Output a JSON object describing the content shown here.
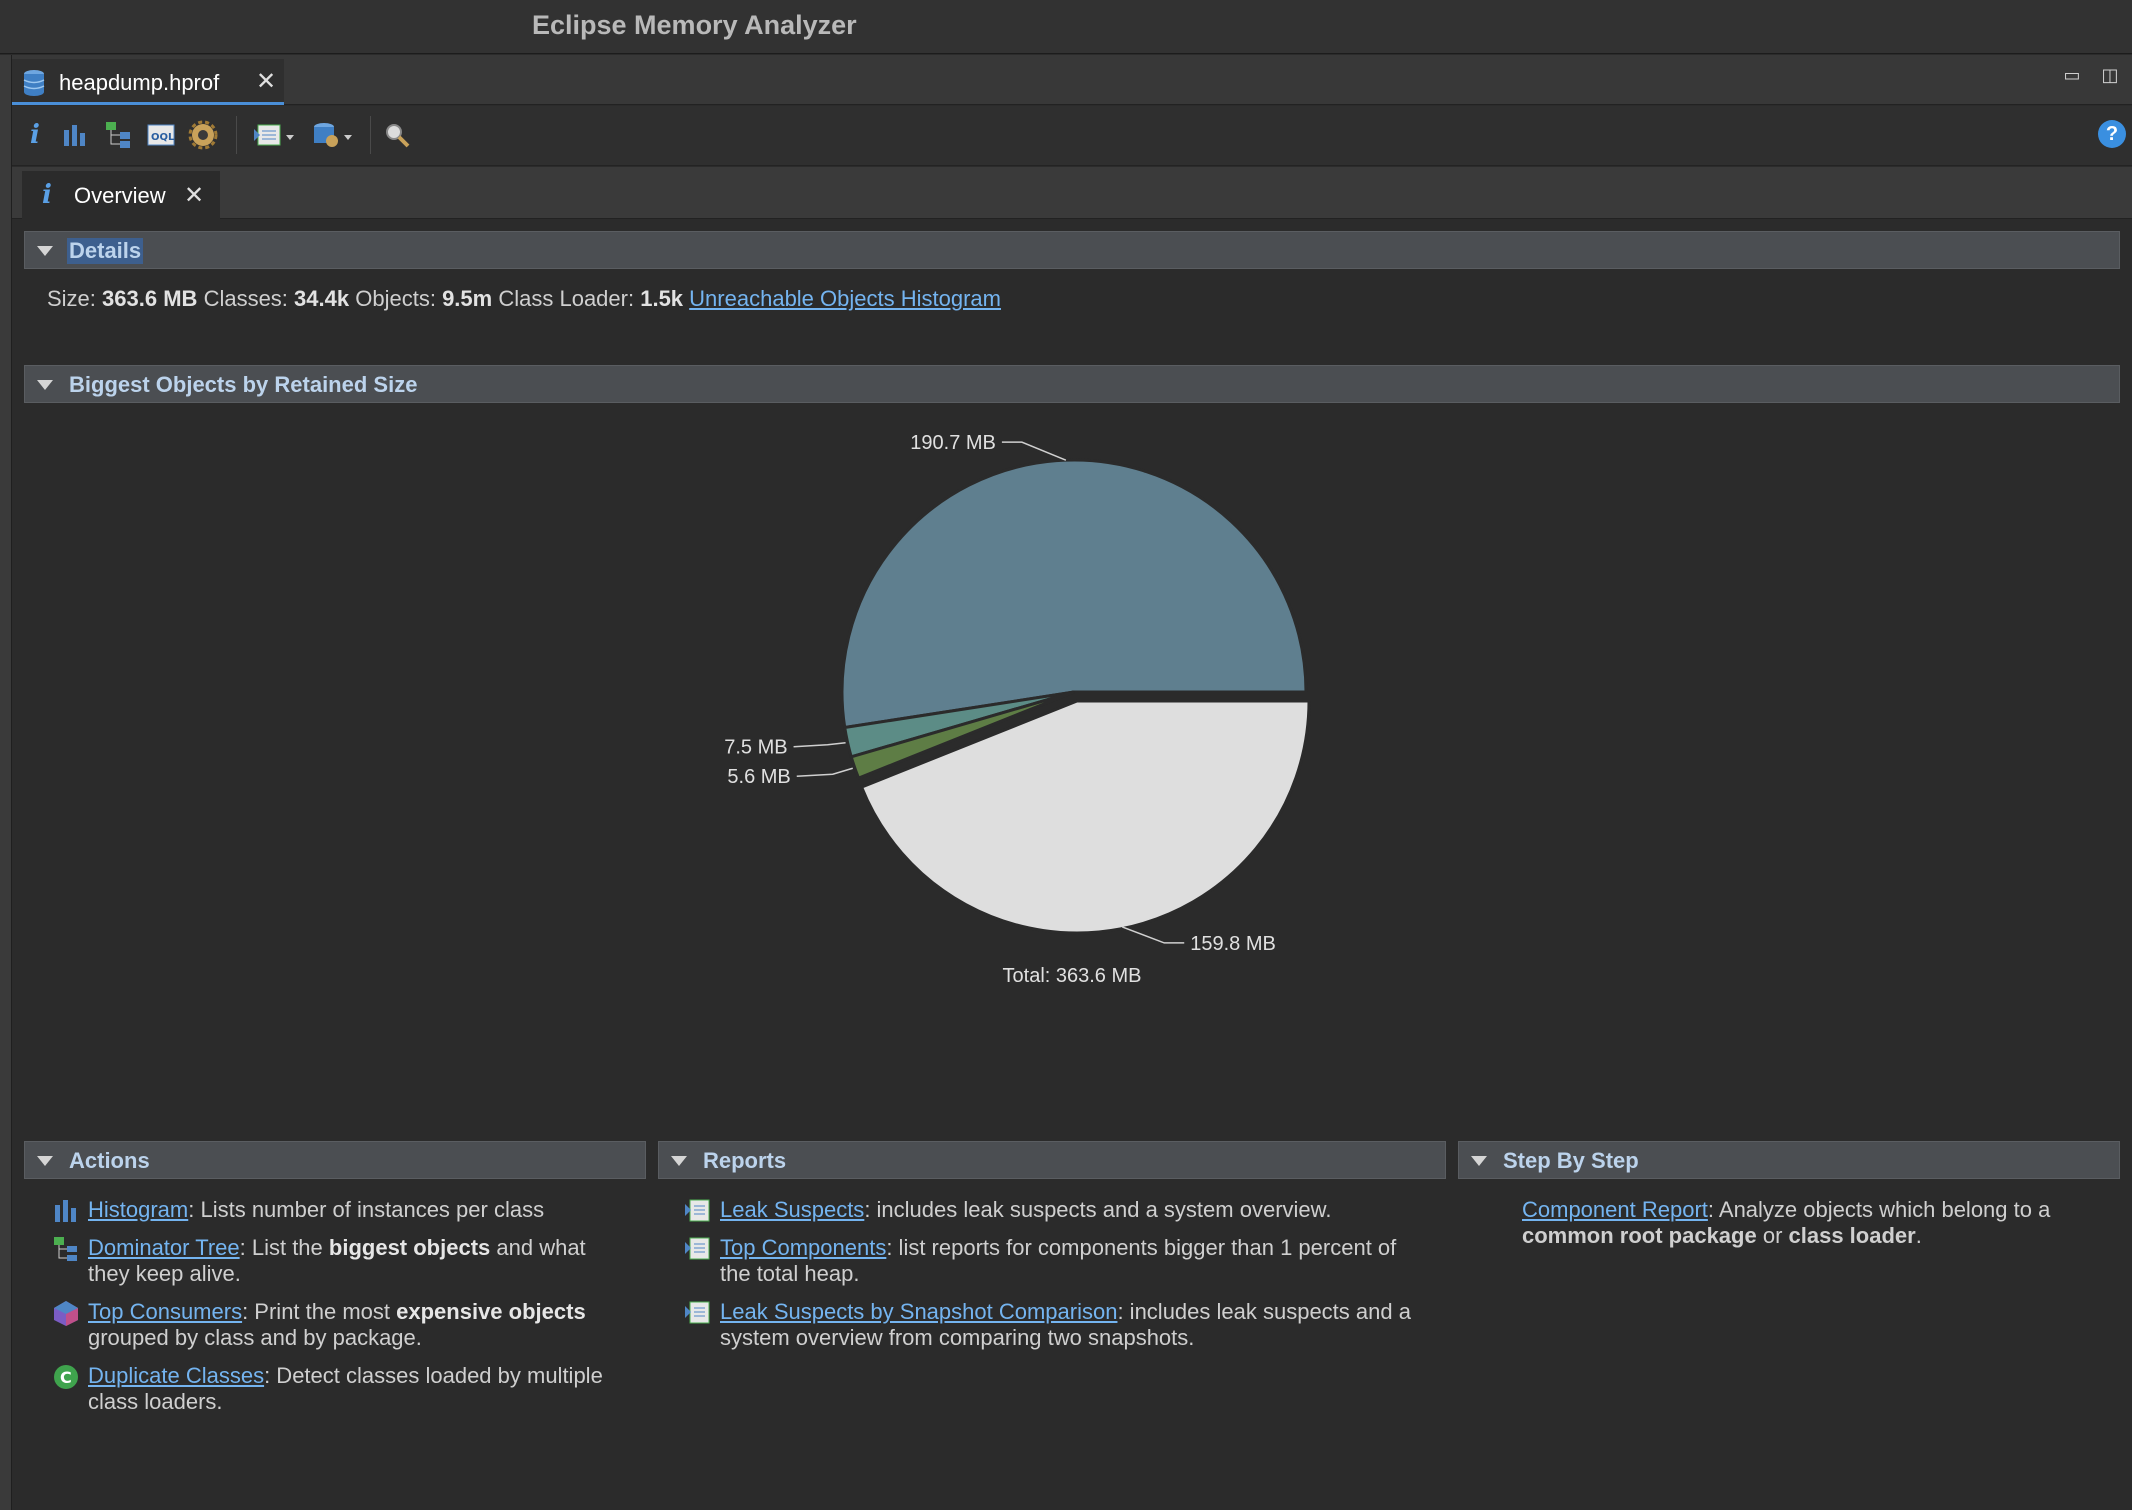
{
  "window": {
    "title": "Eclipse Memory Analyzer"
  },
  "editor_tab": {
    "label": "heapdump.hprof"
  },
  "toolbar": {
    "buttons": [
      "info-icon",
      "histogram-icon",
      "dominator-tree-icon",
      "oql-icon",
      "heap-dump-details-icon",
      "run-report-icon",
      "query-browser-icon",
      "search-icon"
    ]
  },
  "view_tab": {
    "label": "Overview"
  },
  "details": {
    "header": "Details",
    "size_label": "Size:",
    "size_value": "363.6 MB",
    "classes_label": "Classes:",
    "classes_value": "34.4k",
    "objects_label": "Objects:",
    "objects_value": "9.5m",
    "loader_label": "Class Loader:",
    "loader_value": "1.5k",
    "link": "Unreachable Objects Histogram"
  },
  "biggest": {
    "header": "Biggest Objects by Retained Size"
  },
  "chart_data": {
    "type": "pie",
    "unit": "MB",
    "slices": [
      {
        "label": "190.7 MB",
        "value": 190.7,
        "color": "#5f7f8f"
      },
      {
        "label": "7.5 MB",
        "value": 7.5,
        "color": "#5c8c86"
      },
      {
        "label": "5.6 MB",
        "value": 5.6,
        "color": "#5e7d45"
      },
      {
        "label": "159.8 MB",
        "value": 159.8,
        "color": "#dedede"
      }
    ],
    "total_label": "Total: 363.6 MB"
  },
  "actions": {
    "header": "Actions",
    "items": [
      {
        "link": "Histogram",
        "pre": ": Lists number of instances per class",
        "bold": "",
        "post": ""
      },
      {
        "link": "Dominator Tree",
        "pre": ": List the ",
        "bold": "biggest objects",
        "post": " and what they keep alive."
      },
      {
        "link": "Top Consumers",
        "pre": ": Print the most ",
        "bold": "expensive objects",
        "post": " grouped by class and by package."
      },
      {
        "link": "Duplicate Classes",
        "pre": ": Detect classes loaded by multiple class loaders.",
        "bold": "",
        "post": ""
      }
    ]
  },
  "reports": {
    "header": "Reports",
    "items": [
      {
        "link": "Leak Suspects",
        "text": ": includes leak suspects and a system overview."
      },
      {
        "link": "Top Components",
        "text": ": list reports for components bigger than 1 percent of the total heap."
      },
      {
        "link": "Leak Suspects by Snapshot Comparison",
        "text": ": includes leak suspects and a system overview from comparing two snapshots."
      }
    ]
  },
  "stepbystep": {
    "header": "Step By Step",
    "link": "Component Report",
    "pre": ": Analyze objects which belong to a ",
    "bold1": "common root package",
    "mid": " or ",
    "bold2": "class loader",
    "post": "."
  }
}
